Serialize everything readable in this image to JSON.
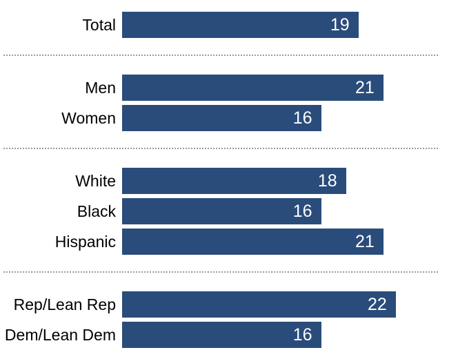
{
  "chart_data": {
    "type": "bar",
    "orientation": "horizontal",
    "title": "",
    "xlabel": "",
    "ylabel": "",
    "xlim": [
      0,
      27
    ],
    "grid": false,
    "legend": false,
    "bar_color": "#2A4C7B",
    "value_label_color": "#ffffff",
    "category_label_color": "#000000",
    "separator_color": "#999999",
    "value_labels_inside": true,
    "groups": [
      {
        "name": "total",
        "categories": [
          "Total"
        ],
        "values": [
          19
        ]
      },
      {
        "name": "men-women",
        "categories": [
          "Men",
          "Women"
        ],
        "values": [
          21,
          16
        ]
      },
      {
        "name": "white-black-hispanic",
        "categories": [
          "White",
          "Black",
          "Hispanic"
        ],
        "values": [
          18,
          16,
          21
        ]
      },
      {
        "name": "rep-dem",
        "categories": [
          "Rep/Lean Rep",
          "Dem/Lean Dem"
        ],
        "values": [
          22,
          16
        ]
      }
    ]
  }
}
